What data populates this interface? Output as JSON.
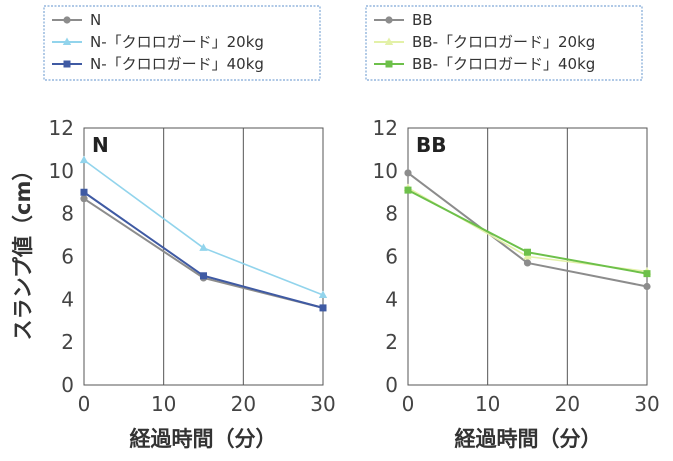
{
  "chart_data": [
    {
      "type": "line",
      "panel_label": "N",
      "xlabel": "経過時間（分）",
      "ylabel": "スランプ値（cm）",
      "xlim": [
        0,
        30
      ],
      "ylim": [
        0,
        12
      ],
      "x_ticks": [
        "0",
        "10",
        "20",
        "30"
      ],
      "y_ticks": [
        "0",
        "2",
        "4",
        "6",
        "8",
        "10",
        "12"
      ],
      "grid": "vertical",
      "legend": "top",
      "series": [
        {
          "name": "N",
          "color": "#8c8c8c",
          "marker": "circle",
          "x": [
            0,
            15,
            30
          ],
          "y": [
            8.7,
            5.0,
            3.6
          ]
        },
        {
          "name": "N-「クロロガード」20kg",
          "color": "#92d4ec",
          "marker": "triangle",
          "x": [
            0,
            15,
            30
          ],
          "y": [
            10.5,
            6.4,
            4.2
          ]
        },
        {
          "name": "N-「クロロガード」40kg",
          "color": "#3f5aa3",
          "marker": "square",
          "x": [
            0,
            15,
            30
          ],
          "y": [
            9.0,
            5.1,
            3.6
          ]
        }
      ]
    },
    {
      "type": "line",
      "panel_label": "BB",
      "xlabel": "経過時間（分）",
      "ylabel": "",
      "xlim": [
        0,
        30
      ],
      "ylim": [
        0,
        12
      ],
      "x_ticks": [
        "0",
        "10",
        "20",
        "30"
      ],
      "y_ticks": [
        "0",
        "2",
        "4",
        "6",
        "8",
        "10",
        "12"
      ],
      "grid": "vertical",
      "legend": "top",
      "series": [
        {
          "name": "BB",
          "color": "#8c8c8c",
          "marker": "circle",
          "x": [
            0,
            15,
            30
          ],
          "y": [
            9.9,
            5.7,
            4.6
          ]
        },
        {
          "name": "BB-「クロロガード」20kg",
          "color": "#e3f1a8",
          "marker": "triangle",
          "x": [
            0,
            15,
            30
          ],
          "y": [
            9.2,
            6.0,
            5.3
          ]
        },
        {
          "name": "BB-「クロロガード」40kg",
          "color": "#6dc04a",
          "marker": "square",
          "x": [
            0,
            15,
            30
          ],
          "y": [
            9.1,
            6.2,
            5.2
          ]
        }
      ]
    }
  ]
}
